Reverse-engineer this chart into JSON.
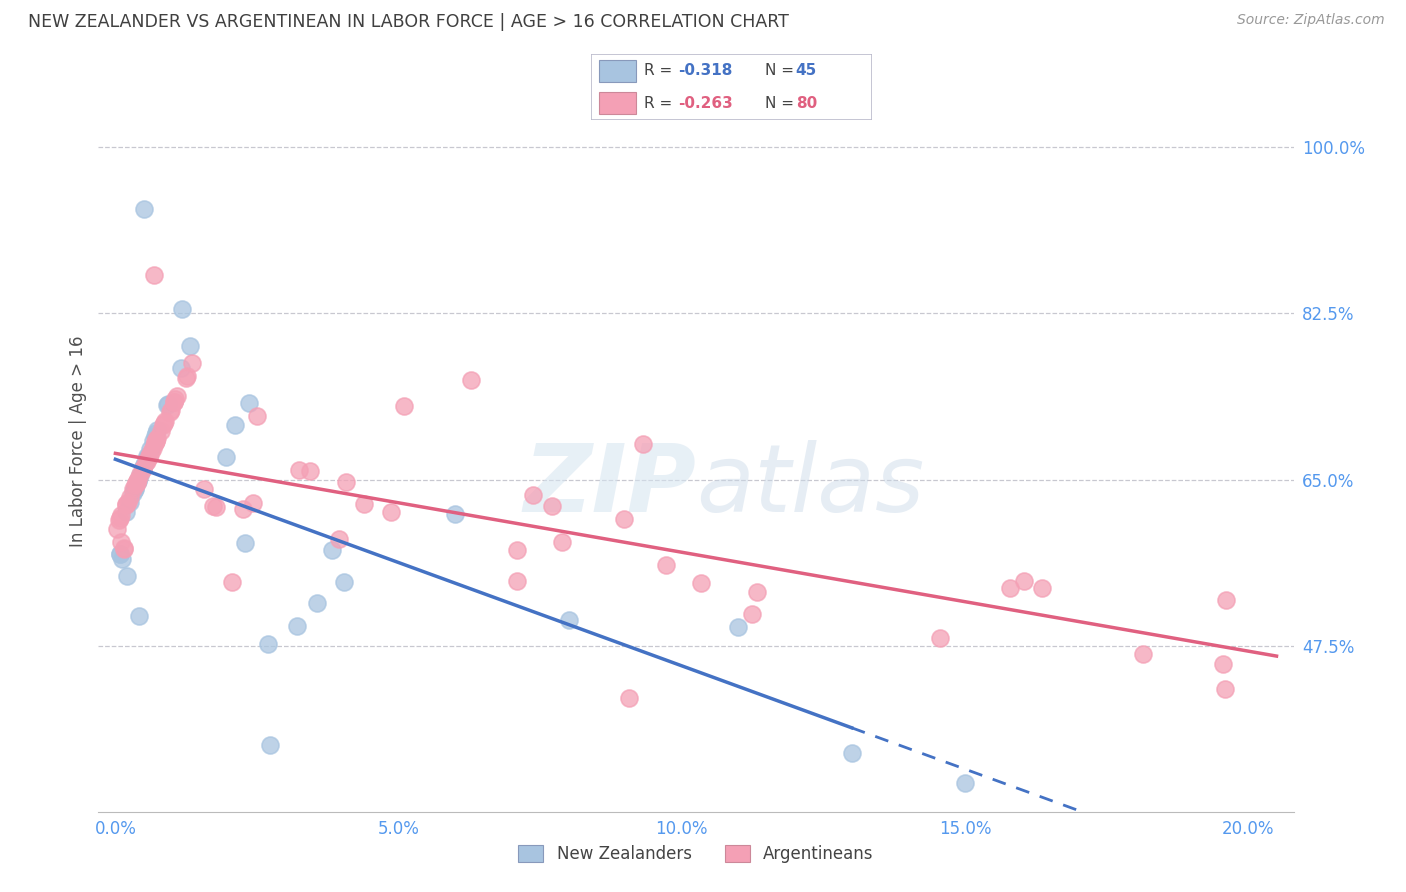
{
  "title": "NEW ZEALANDER VS ARGENTINEAN IN LABOR FORCE | AGE > 16 CORRELATION CHART",
  "source": "Source: ZipAtlas.com",
  "xlabel_ticks": [
    "0.0%",
    "",
    "5.0%",
    "",
    "10.0%",
    "",
    "15.0%",
    "",
    "20.0%"
  ],
  "xlabel_tick_vals": [
    0.0,
    0.025,
    0.05,
    0.075,
    0.1,
    0.125,
    0.15,
    0.175,
    0.2
  ],
  "ylabel_label": "In Labor Force | Age > 16",
  "ylabel_ticks_right": [
    "100.0%",
    "82.5%",
    "65.0%",
    "47.5%"
  ],
  "ylabel_tick_vals": [
    1.0,
    0.825,
    0.65,
    0.475
  ],
  "xlim": [
    -0.003,
    0.208
  ],
  "ylim": [
    0.3,
    1.08
  ],
  "watermark_zip": "ZIP",
  "watermark_atlas": "atlas",
  "nz_color": "#a8c4e0",
  "arg_color": "#f4a0b5",
  "nz_line_color": "#4472c4",
  "arg_line_color": "#e06080",
  "grid_color": "#c8c8d0",
  "title_color": "#404040",
  "axis_label_color": "#5599ee",
  "legend_box_color": "#dddddd",
  "nz_R": "-0.318",
  "nz_N": "45",
  "arg_R": "-0.263",
  "arg_N": "80",
  "bottom_legend_nz": "New Zealanders",
  "bottom_legend_arg": "Argentineans"
}
